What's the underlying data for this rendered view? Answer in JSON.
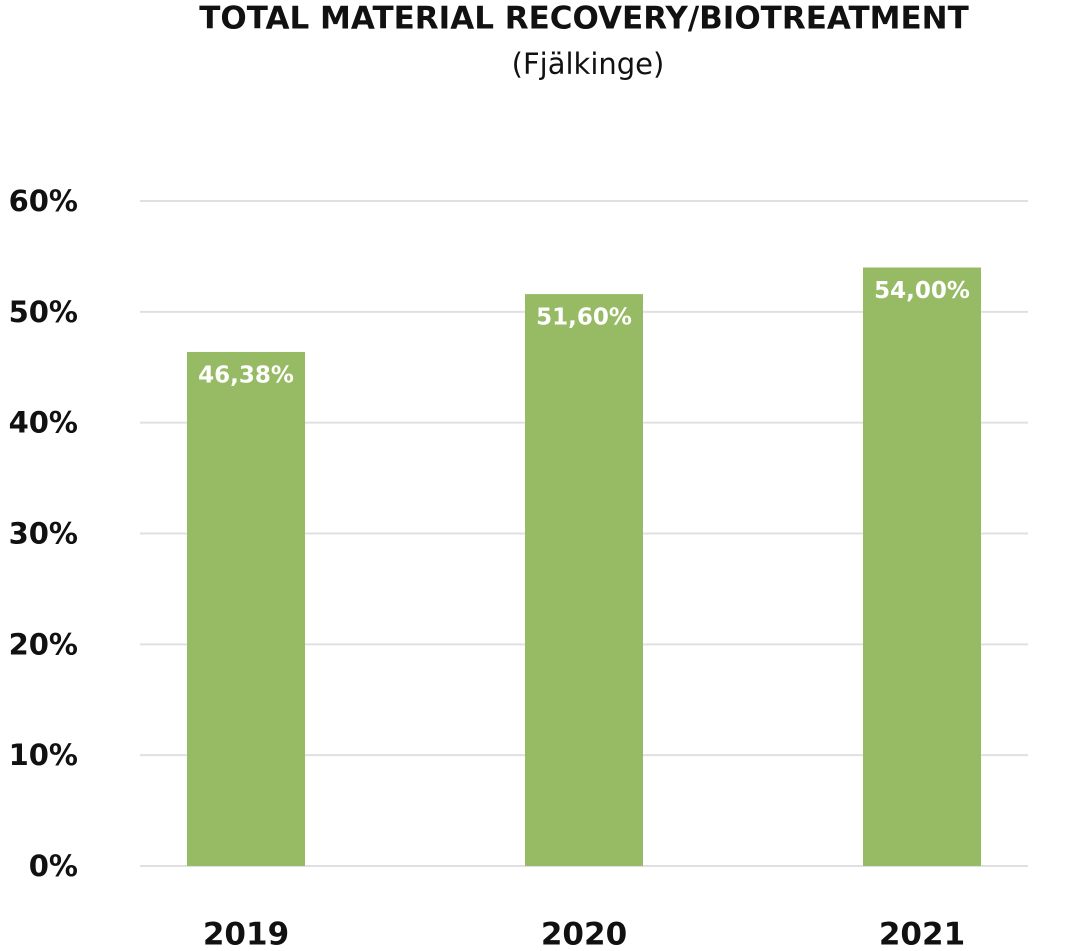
{
  "chart_data": {
    "type": "bar",
    "title": "TOTAL MATERIAL RECOVERY/BIOTREATMENT",
    "subtitle": "(Fjälkinge)",
    "categories": [
      "2019",
      "2020",
      "2021"
    ],
    "values": [
      46.38,
      51.6,
      54
    ],
    "value_labels": [
      "46,38%",
      "51,60%",
      "54,00%"
    ],
    "color": "#97bb64",
    "ylim": [
      0,
      60
    ],
    "yticks": [
      {
        "value": 0,
        "label": "0%"
      },
      {
        "value": 10,
        "label": "10%"
      },
      {
        "value": 20,
        "label": "20%"
      },
      {
        "value": 30,
        "label": "30%"
      },
      {
        "value": 40,
        "label": "40%"
      },
      {
        "value": 50,
        "label": "50%"
      },
      {
        "value": 60,
        "label": "60%"
      }
    ],
    "grid": true
  }
}
